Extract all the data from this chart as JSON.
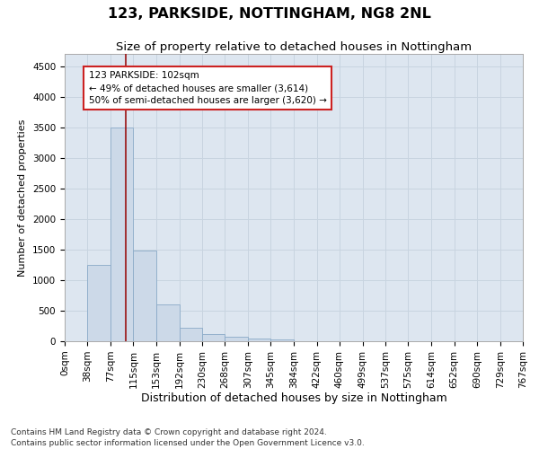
{
  "title": "123, PARKSIDE, NOTTINGHAM, NG8 2NL",
  "subtitle": "Size of property relative to detached houses in Nottingham",
  "xlabel": "Distribution of detached houses by size in Nottingham",
  "ylabel": "Number of detached properties",
  "footnote1": "Contains HM Land Registry data © Crown copyright and database right 2024.",
  "footnote2": "Contains public sector information licensed under the Open Government Licence v3.0.",
  "bar_edges": [
    0,
    38,
    77,
    115,
    153,
    192,
    230,
    268,
    307,
    345,
    384,
    422,
    460,
    499,
    537,
    575,
    614,
    652,
    690,
    729,
    767
  ],
  "bar_heights": [
    5,
    1250,
    3500,
    1480,
    600,
    220,
    115,
    75,
    45,
    30,
    5,
    0,
    5,
    0,
    0,
    0,
    0,
    0,
    0,
    0
  ],
  "bar_color": "#ccd9e8",
  "bar_edge_color": "#8aaac8",
  "grid_color": "#c8d4e0",
  "bg_color": "#dde6f0",
  "property_size": 102,
  "vline_color": "#991111",
  "annotation_line1": "123 PARKSIDE: 102sqm",
  "annotation_line2": "← 49% of detached houses are smaller (3,614)",
  "annotation_line3": "50% of semi-detached houses are larger (3,620) →",
  "annotation_box_color": "#ffffff",
  "annotation_border_color": "#cc2222",
  "ylim": [
    0,
    4700
  ],
  "yticks": [
    0,
    500,
    1000,
    1500,
    2000,
    2500,
    3000,
    3500,
    4000,
    4500
  ],
  "title_fontsize": 11.5,
  "subtitle_fontsize": 9.5,
  "xlabel_fontsize": 9,
  "ylabel_fontsize": 8,
  "tick_fontsize": 7.5,
  "annot_fontsize": 7.5,
  "footnote_fontsize": 6.5
}
